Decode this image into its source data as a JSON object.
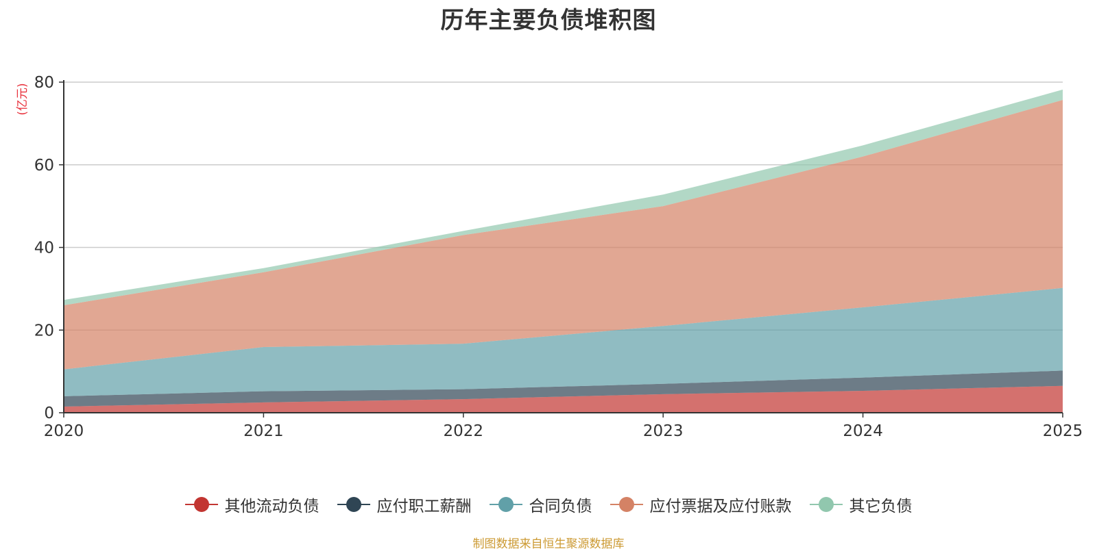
{
  "chart_data": {
    "type": "area",
    "stacked": true,
    "title": "历年主要负债堆积图",
    "ylabel": "(亿元)",
    "xlabel": "",
    "x": [
      "2020",
      "2021",
      "2022",
      "2023",
      "2024",
      "2025"
    ],
    "yticks": [
      "0",
      "20",
      "40",
      "60",
      "80"
    ],
    "ylim": [
      0,
      80
    ],
    "grid": true,
    "legend_position": "bottom",
    "series": [
      {
        "name": "其他流动负债",
        "color": "#c23531",
        "values": [
          1.5,
          2.5,
          3.3,
          4.5,
          5.3,
          6.5
        ]
      },
      {
        "name": "应付职工薪酬",
        "color": "#2f4554",
        "values": [
          2.5,
          2.7,
          2.4,
          2.5,
          3.2,
          3.7
        ]
      },
      {
        "name": "合同负债",
        "color": "#61a0a8",
        "values": [
          6.5,
          10.7,
          11.0,
          14.0,
          17.0,
          20.0
        ]
      },
      {
        "name": "应付票据及应付账款",
        "color": "#d48265",
        "values": [
          15.5,
          18.1,
          26.3,
          29.0,
          36.5,
          45.5
        ]
      },
      {
        "name": "其它负债",
        "color": "#91c7ae",
        "values": [
          1.3,
          1.0,
          1.0,
          2.8,
          2.7,
          2.5
        ]
      }
    ]
  },
  "source": "制图数据来自恒生聚源数据库"
}
